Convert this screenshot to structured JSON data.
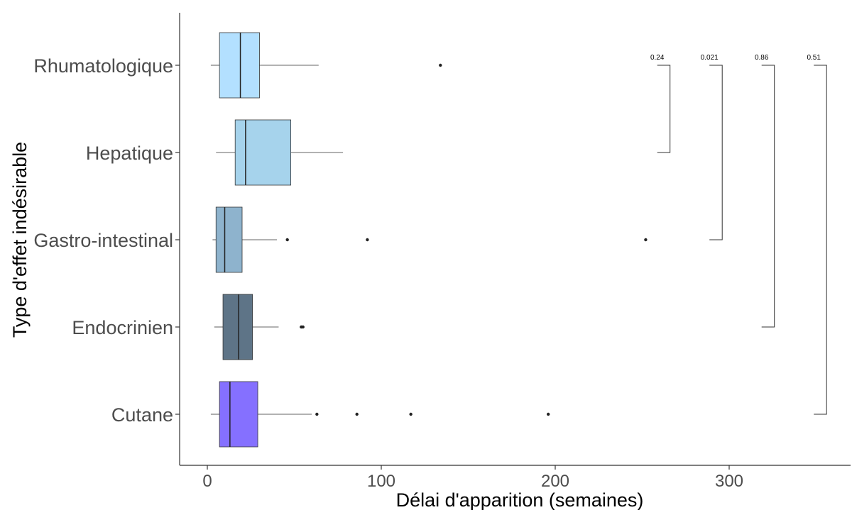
{
  "chart_data": {
    "type": "boxplot",
    "orientation": "horizontal",
    "title": "",
    "xlabel": "Délai d'apparition (semaines)",
    "ylabel": "Type d'effet indésirable",
    "xlim": [
      -15,
      365
    ],
    "x_ticks": [
      0,
      100,
      200,
      300
    ],
    "grid": false,
    "categories": [
      "Rhumatologique",
      "Hepatique",
      "Gastro-intestinal",
      "Endocrinien",
      "Cutane"
    ],
    "boxes": [
      {
        "category": "Rhumatologique",
        "whisker_low": 2,
        "q1": 7,
        "median": 19,
        "q3": 30,
        "whisker_high": 64,
        "outliers": [
          134
        ],
        "color": "#b3e0ff"
      },
      {
        "category": "Hepatique",
        "whisker_low": 5,
        "q1": 16,
        "median": 22,
        "q3": 48,
        "whisker_high": 78,
        "outliers": [],
        "color": "#a6d3ec"
      },
      {
        "category": "Gastro-intestinal",
        "whisker_low": 3,
        "q1": 5,
        "median": 10,
        "q3": 20,
        "whisker_high": 40,
        "outliers": [
          46,
          92,
          252
        ],
        "color": "#8eb3cd"
      },
      {
        "category": "Endocrinien",
        "whisker_low": 4,
        "q1": 9,
        "median": 18,
        "q3": 26,
        "whisker_high": 41,
        "outliers": [
          54,
          55
        ],
        "color": "#5e7487"
      },
      {
        "category": "Cutane",
        "whisker_low": 2,
        "q1": 7,
        "median": 13,
        "q3": 29,
        "whisker_high": 60,
        "outliers": [
          63,
          86,
          117,
          196
        ],
        "color": "#8570ff"
      }
    ],
    "comparisons": [
      {
        "from": "Hepatique",
        "to": "Rhumatologique",
        "p": "0.24",
        "x": 266
      },
      {
        "from": "Gastro-intestinal",
        "to": "Rhumatologique",
        "p": "0.021",
        "x": 296
      },
      {
        "from": "Endocrinien",
        "to": "Rhumatologique",
        "p": "0.86",
        "x": 326
      },
      {
        "from": "Cutane",
        "to": "Rhumatologique",
        "p": "0.51",
        "x": 356
      }
    ]
  }
}
